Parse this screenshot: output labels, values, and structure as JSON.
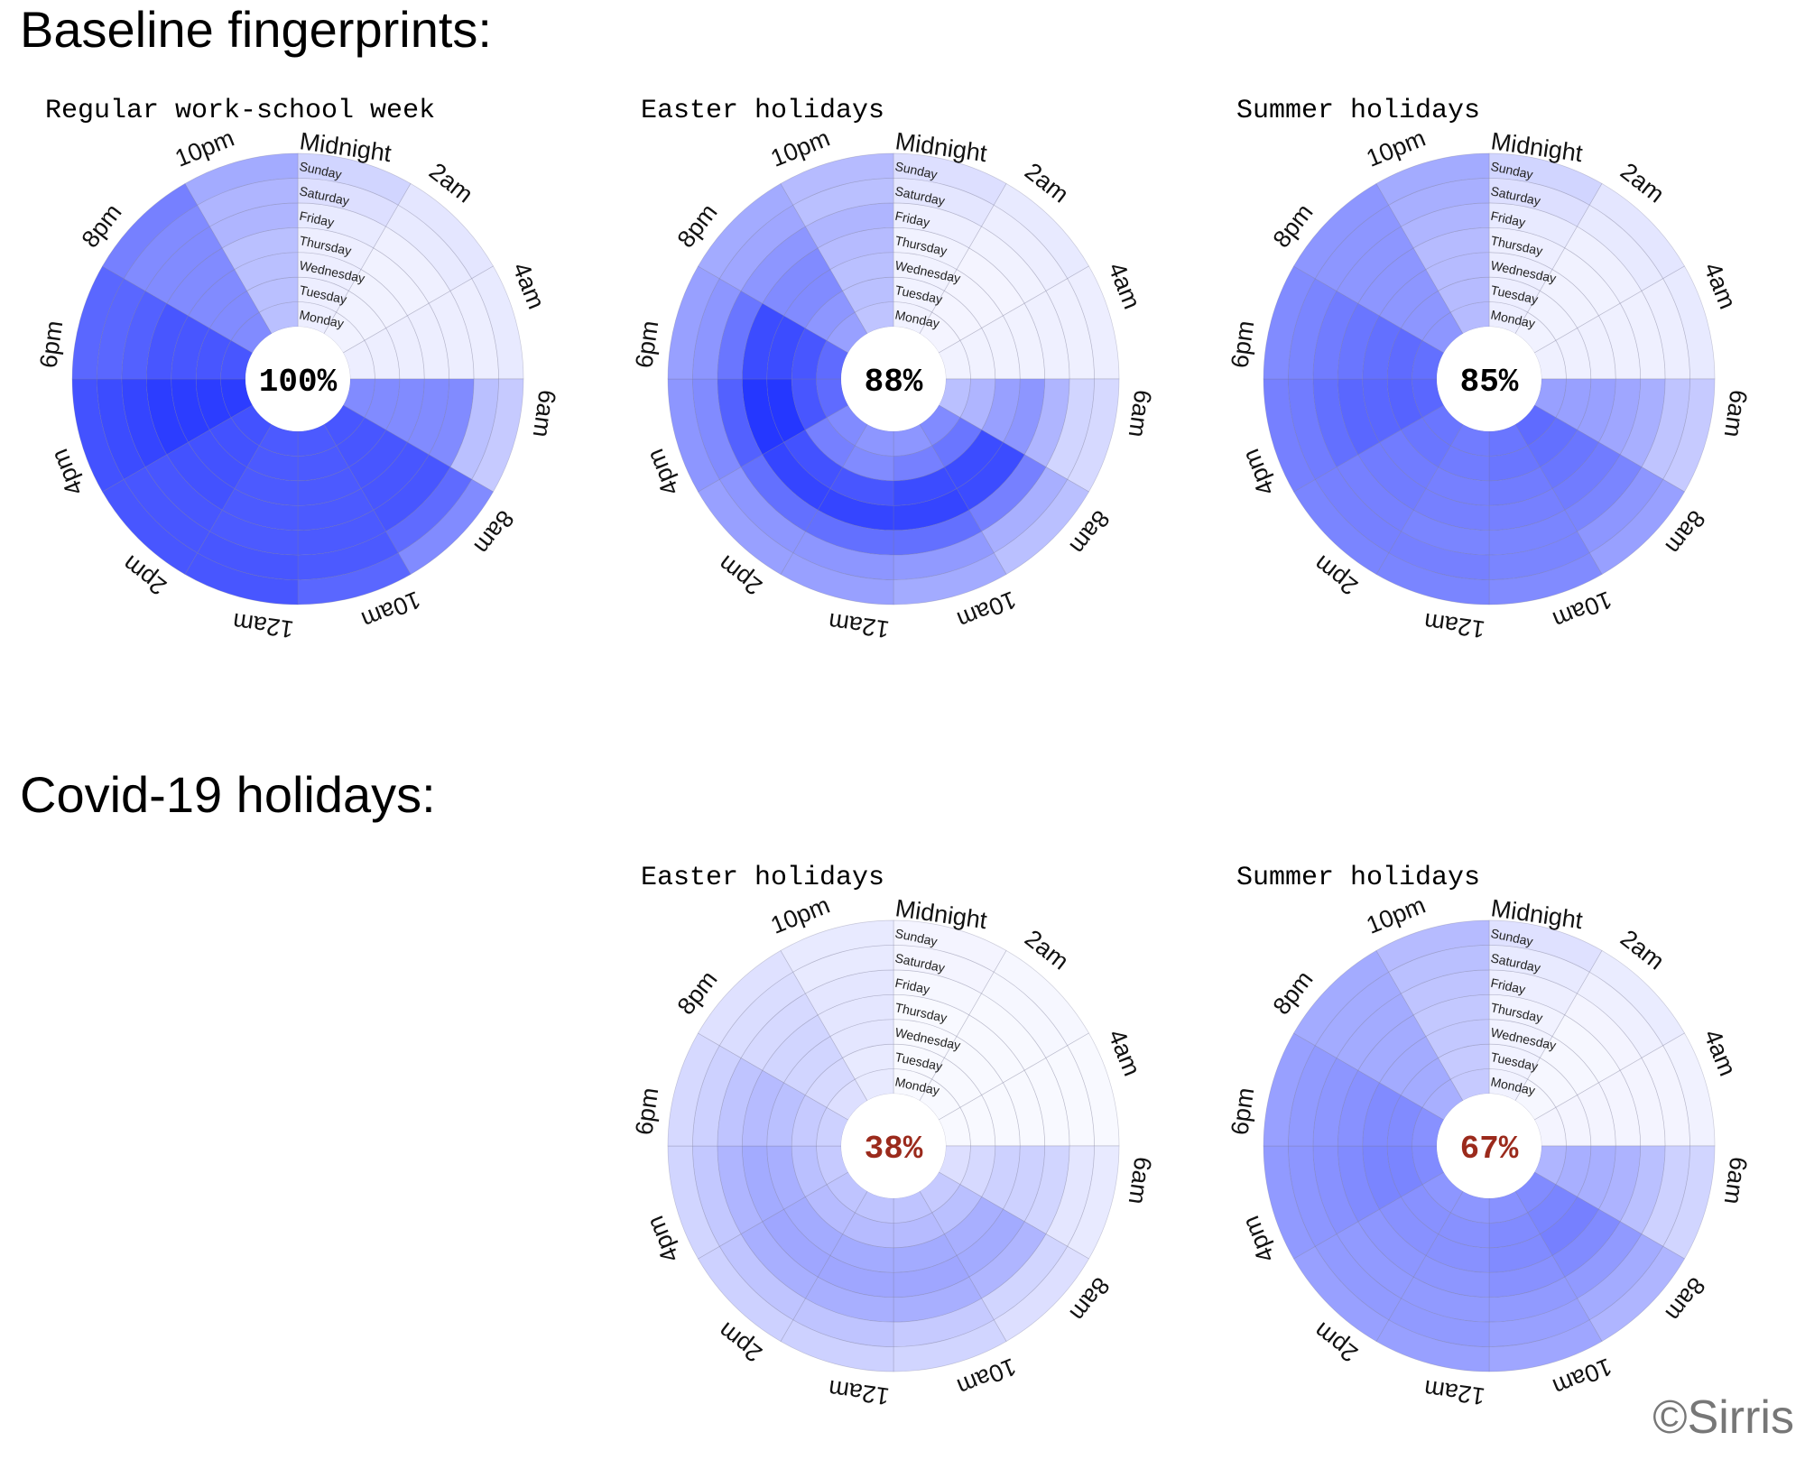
{
  "section_titles": {
    "baseline": "Baseline fingerprints:",
    "covid": "Covid-19 holidays:"
  },
  "copyright": "©Sirris",
  "colors": {
    "base_blue": "#1a2cff",
    "center_normal": "#000000",
    "center_covid": "#9b2a1c"
  },
  "hour_labels": [
    "Midnight",
    "2am",
    "4am",
    "6am",
    "8am",
    "10am",
    "12am",
    "2pm",
    "4pm",
    "6pm",
    "8pm",
    "10pm"
  ],
  "day_labels": [
    "Monday",
    "Tuesday",
    "Wednesday",
    "Thursday",
    "Friday",
    "Saturday",
    "Sunday"
  ],
  "chart_data": [
    {
      "type": "heatmap",
      "group": "baseline",
      "title": "Regular work-school week",
      "center_label": "100%",
      "center_color": "normal",
      "sector_hours": [
        "Midnight",
        "2am",
        "4am",
        "6am",
        "8am",
        "10am",
        "12am",
        "2pm",
        "4pm",
        "6pm",
        "8pm",
        "10pm"
      ],
      "rings": [
        "Monday",
        "Tuesday",
        "Wednesday",
        "Thursday",
        "Friday",
        "Saturday",
        "Sunday"
      ],
      "values": [
        [
          0.08,
          0.06,
          0.08,
          0.55,
          0.8,
          0.78,
          0.78,
          0.82,
          0.92,
          0.8,
          0.55,
          0.3
        ],
        [
          0.08,
          0.06,
          0.08,
          0.55,
          0.8,
          0.78,
          0.78,
          0.82,
          0.92,
          0.8,
          0.55,
          0.3
        ],
        [
          0.08,
          0.06,
          0.08,
          0.55,
          0.8,
          0.78,
          0.78,
          0.82,
          0.92,
          0.8,
          0.55,
          0.3
        ],
        [
          0.08,
          0.06,
          0.08,
          0.55,
          0.8,
          0.78,
          0.78,
          0.82,
          0.92,
          0.8,
          0.55,
          0.3
        ],
        [
          0.1,
          0.07,
          0.08,
          0.55,
          0.8,
          0.78,
          0.78,
          0.8,
          0.88,
          0.75,
          0.55,
          0.35
        ],
        [
          0.15,
          0.1,
          0.08,
          0.3,
          0.7,
          0.78,
          0.8,
          0.8,
          0.85,
          0.72,
          0.55,
          0.35
        ],
        [
          0.2,
          0.12,
          0.1,
          0.25,
          0.55,
          0.72,
          0.8,
          0.8,
          0.82,
          0.72,
          0.6,
          0.4
        ]
      ]
    },
    {
      "type": "heatmap",
      "group": "baseline",
      "title": "Easter holidays",
      "center_label": "88%",
      "center_color": "normal",
      "sector_hours": [
        "Midnight",
        "2am",
        "4am",
        "6am",
        "8am",
        "10am",
        "12am",
        "2pm",
        "4pm",
        "6pm",
        "8pm",
        "10pm"
      ],
      "rings": [
        "Monday",
        "Tuesday",
        "Wednesday",
        "Thursday",
        "Friday",
        "Saturday",
        "Sunday"
      ],
      "values": [
        [
          0.06,
          0.05,
          0.06,
          0.3,
          0.55,
          0.5,
          0.5,
          0.55,
          0.7,
          0.7,
          0.45,
          0.28
        ],
        [
          0.06,
          0.05,
          0.06,
          0.35,
          0.65,
          0.6,
          0.55,
          0.6,
          0.8,
          0.8,
          0.5,
          0.3
        ],
        [
          0.06,
          0.05,
          0.06,
          0.45,
          0.85,
          0.85,
          0.8,
          0.82,
          0.95,
          0.85,
          0.55,
          0.3
        ],
        [
          0.06,
          0.05,
          0.06,
          0.5,
          0.85,
          0.88,
          0.88,
          0.88,
          0.95,
          0.85,
          0.55,
          0.32
        ],
        [
          0.08,
          0.06,
          0.07,
          0.35,
          0.6,
          0.68,
          0.68,
          0.68,
          0.75,
          0.65,
          0.5,
          0.35
        ],
        [
          0.12,
          0.08,
          0.07,
          0.2,
          0.38,
          0.48,
          0.5,
          0.5,
          0.55,
          0.5,
          0.42,
          0.3
        ],
        [
          0.15,
          0.1,
          0.08,
          0.18,
          0.3,
          0.4,
          0.45,
          0.45,
          0.5,
          0.45,
          0.4,
          0.32
        ]
      ]
    },
    {
      "type": "heatmap",
      "group": "baseline",
      "title": "Summer holidays",
      "center_label": "85%",
      "center_color": "normal",
      "sector_hours": [
        "Midnight",
        "2am",
        "4am",
        "6am",
        "8am",
        "10am",
        "12am",
        "2pm",
        "4pm",
        "6pm",
        "8pm",
        "10pm"
      ],
      "rings": [
        "Monday",
        "Tuesday",
        "Wednesday",
        "Thursday",
        "Friday",
        "Saturday",
        "Sunday"
      ],
      "values": [
        [
          0.08,
          0.06,
          0.07,
          0.45,
          0.7,
          0.65,
          0.62,
          0.65,
          0.72,
          0.68,
          0.5,
          0.32
        ],
        [
          0.08,
          0.06,
          0.07,
          0.45,
          0.68,
          0.65,
          0.62,
          0.65,
          0.74,
          0.7,
          0.5,
          0.32
        ],
        [
          0.08,
          0.06,
          0.07,
          0.45,
          0.65,
          0.62,
          0.6,
          0.62,
          0.72,
          0.68,
          0.5,
          0.32
        ],
        [
          0.08,
          0.06,
          0.07,
          0.42,
          0.62,
          0.6,
          0.6,
          0.62,
          0.72,
          0.65,
          0.5,
          0.32
        ],
        [
          0.1,
          0.07,
          0.07,
          0.38,
          0.58,
          0.58,
          0.58,
          0.6,
          0.68,
          0.62,
          0.5,
          0.35
        ],
        [
          0.15,
          0.1,
          0.08,
          0.28,
          0.5,
          0.58,
          0.6,
          0.6,
          0.62,
          0.58,
          0.5,
          0.38
        ],
        [
          0.2,
          0.12,
          0.1,
          0.25,
          0.45,
          0.55,
          0.58,
          0.58,
          0.6,
          0.55,
          0.5,
          0.4
        ]
      ]
    },
    {
      "type": "heatmap",
      "group": "covid",
      "title": "Easter holidays",
      "center_label": "38%",
      "center_color": "covid",
      "sector_hours": [
        "Midnight",
        "2am",
        "4am",
        "6am",
        "8am",
        "10am",
        "12am",
        "2pm",
        "4pm",
        "6pm",
        "8pm",
        "10pm"
      ],
      "rings": [
        "Monday",
        "Tuesday",
        "Wednesday",
        "Thursday",
        "Friday",
        "Saturday",
        "Sunday"
      ],
      "values": [
        [
          0.03,
          0.03,
          0.03,
          0.15,
          0.25,
          0.28,
          0.28,
          0.28,
          0.25,
          0.22,
          0.15,
          0.1
        ],
        [
          0.03,
          0.03,
          0.03,
          0.18,
          0.3,
          0.32,
          0.32,
          0.32,
          0.3,
          0.25,
          0.18,
          0.1
        ],
        [
          0.03,
          0.03,
          0.03,
          0.22,
          0.38,
          0.4,
          0.4,
          0.4,
          0.38,
          0.3,
          0.2,
          0.12
        ],
        [
          0.03,
          0.03,
          0.03,
          0.22,
          0.4,
          0.42,
          0.42,
          0.42,
          0.4,
          0.32,
          0.2,
          0.12
        ],
        [
          0.04,
          0.03,
          0.03,
          0.2,
          0.35,
          0.38,
          0.38,
          0.38,
          0.35,
          0.28,
          0.18,
          0.12
        ],
        [
          0.05,
          0.04,
          0.03,
          0.12,
          0.2,
          0.25,
          0.28,
          0.28,
          0.26,
          0.22,
          0.16,
          0.1
        ],
        [
          0.05,
          0.04,
          0.03,
          0.1,
          0.15,
          0.2,
          0.22,
          0.22,
          0.2,
          0.18,
          0.14,
          0.1
        ]
      ]
    },
    {
      "type": "heatmap",
      "group": "covid",
      "title": "Summer holidays",
      "center_label": "67%",
      "center_color": "covid",
      "sector_hours": [
        "Midnight",
        "2am",
        "4am",
        "6am",
        "8am",
        "10am",
        "12am",
        "2pm",
        "4pm",
        "6pm",
        "8pm",
        "10pm"
      ],
      "rings": [
        "Monday",
        "Tuesday",
        "Wednesday",
        "Thursday",
        "Friday",
        "Saturday",
        "Sunday"
      ],
      "values": [
        [
          0.06,
          0.04,
          0.05,
          0.35,
          0.55,
          0.52,
          0.5,
          0.5,
          0.55,
          0.52,
          0.38,
          0.25
        ],
        [
          0.06,
          0.04,
          0.05,
          0.38,
          0.58,
          0.55,
          0.52,
          0.52,
          0.58,
          0.55,
          0.4,
          0.25
        ],
        [
          0.06,
          0.04,
          0.05,
          0.38,
          0.6,
          0.55,
          0.52,
          0.52,
          0.58,
          0.55,
          0.4,
          0.26
        ],
        [
          0.06,
          0.04,
          0.05,
          0.36,
          0.55,
          0.52,
          0.5,
          0.5,
          0.55,
          0.52,
          0.4,
          0.26
        ],
        [
          0.08,
          0.05,
          0.05,
          0.3,
          0.48,
          0.48,
          0.48,
          0.48,
          0.52,
          0.5,
          0.4,
          0.28
        ],
        [
          0.1,
          0.07,
          0.05,
          0.22,
          0.4,
          0.45,
          0.48,
          0.48,
          0.5,
          0.48,
          0.4,
          0.3
        ],
        [
          0.14,
          0.09,
          0.06,
          0.2,
          0.35,
          0.42,
          0.45,
          0.45,
          0.48,
          0.45,
          0.4,
          0.32
        ]
      ]
    }
  ]
}
